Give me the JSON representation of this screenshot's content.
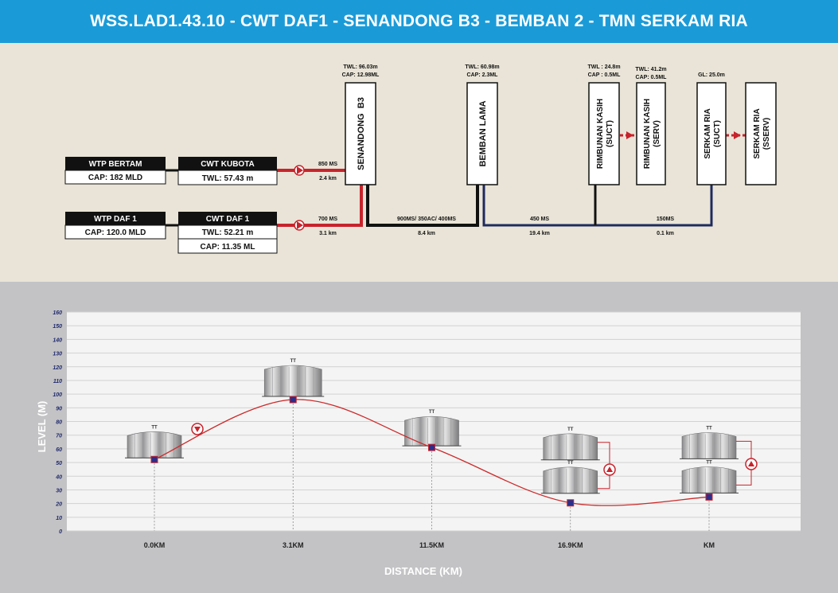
{
  "header": {
    "title": "WSS.LAD1.43.10 - CWT DAF1 - SENANDONG B3 - BEMBAN 2 - TMN SERKAM RIA"
  },
  "schematic": {
    "sources": [
      {
        "name": "WTP BERTAM",
        "lines": [
          "CAP: 182 MLD"
        ]
      },
      {
        "name": "WTP DAF 1",
        "lines": [
          "CAP: 120.0 MLD"
        ]
      }
    ],
    "cwts": [
      {
        "name": "CWT KUBOTA",
        "lines": [
          "TWL: 57.43 m"
        ]
      },
      {
        "name": "CWT DAF 1",
        "lines": [
          "TWL: 52.21 m",
          "CAP: 11.35 ML"
        ]
      }
    ],
    "pipes": [
      {
        "top": "850 MS",
        "bottom": "2.4 km"
      },
      {
        "top": "700 MS",
        "bottom": "3.1 km"
      },
      {
        "top": "900MS/ 350AC/ 400MS",
        "bottom": "8.4 km"
      },
      {
        "top": "450 MS",
        "bottom": "19.4 km"
      },
      {
        "top": "150MS",
        "bottom": "0.1 km"
      }
    ],
    "reservoirs": [
      {
        "name": "SENANDONG  B3",
        "info": [
          "TWL: 96.03m",
          "CAP: 12.98ML"
        ]
      },
      {
        "name": "BEMBAN LAMA",
        "info": [
          "TWL: 60.98m",
          "CAP: 2.3ML"
        ]
      },
      {
        "name": "RIMBUNAN KASIH",
        "sub": "(SUCT)",
        "info": [
          "TWL : 24.8m",
          "CAP : 0.5ML"
        ]
      },
      {
        "name": "RIMBUNAN KASIH",
        "sub": "(SERV)",
        "info": [
          "TWL: 41.2m",
          "CAP: 0.5ML"
        ]
      },
      {
        "name": "SERKAM RIA",
        "sub": "(SUCT)",
        "info": [
          "GL: 25.0m"
        ]
      },
      {
        "name": "SERKAM RIA",
        "sub": "(SSERV)",
        "info": []
      }
    ]
  },
  "chart_data": {
    "type": "line",
    "xlabel": "DISTANCE (KM)",
    "ylabel": "LEVEL (M)",
    "ylim": [
      0,
      160
    ],
    "yticks": [
      0,
      10,
      20,
      30,
      40,
      50,
      60,
      70,
      80,
      90,
      100,
      110,
      120,
      130,
      140,
      150,
      160
    ],
    "categories": [
      "0.0KM",
      "3.1KM",
      "11.5KM",
      "16.9KM",
      "KM"
    ],
    "values": [
      52.2,
      96.0,
      61.0,
      20.5,
      24.8
    ],
    "grid": true,
    "tank_markers": [
      "TT"
    ]
  },
  "colors": {
    "banner": "#1a9bd8",
    "pipe_red": "#c8232c",
    "pipe_black": "#111111",
    "pipe_navy": "#1e2a5e",
    "point_fill": "#2b2f8c",
    "profile_line": "#cc2a2a"
  }
}
